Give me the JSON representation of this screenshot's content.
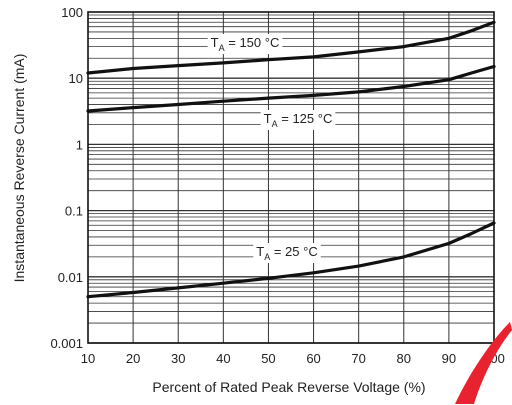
{
  "chart_data": {
    "type": "line",
    "title": "",
    "xlabel": "Percent of Rated Peak Reverse Voltage (%)",
    "ylabel": "Instantaneous Reverse Current (mA)",
    "x_ticks": [
      "10",
      "20",
      "30",
      "40",
      "50",
      "60",
      "70",
      "80",
      "90",
      "100"
    ],
    "y_ticks": [
      "100",
      "10",
      "1",
      "0.1",
      "0.01",
      "0.001"
    ],
    "xlim": [
      10,
      100
    ],
    "ylim": [
      0.001,
      100
    ],
    "y_scale": "log",
    "grid": true,
    "series": [
      {
        "name": "TA = 150 °C",
        "label_main": "T",
        "label_sub": "A",
        "label_rest": " = 150 °C",
        "x": [
          10,
          20,
          30,
          40,
          50,
          60,
          70,
          80,
          90,
          95,
          100
        ],
        "values": [
          12,
          14,
          15.5,
          17,
          19,
          21,
          25,
          30,
          40,
          52,
          70
        ]
      },
      {
        "name": "TA = 125 °C",
        "label_main": "T",
        "label_sub": "A",
        "label_rest": " = 125 °C",
        "x": [
          10,
          20,
          30,
          40,
          50,
          60,
          70,
          80,
          90,
          95,
          100
        ],
        "values": [
          3.2,
          3.6,
          4.0,
          4.5,
          5.0,
          5.5,
          6.2,
          7.5,
          9.5,
          12,
          15
        ]
      },
      {
        "name": "TA = 25 °C",
        "label_main": "T",
        "label_sub": "A",
        "label_rest": " = 25 °C",
        "x": [
          10,
          20,
          30,
          40,
          50,
          60,
          70,
          80,
          90,
          95,
          100
        ],
        "values": [
          0.005,
          0.0058,
          0.0068,
          0.008,
          0.0095,
          0.0115,
          0.0145,
          0.02,
          0.032,
          0.045,
          0.065
        ]
      }
    ]
  },
  "colors": {
    "line": "#111111",
    "grid": "#333333",
    "background": "#ffffff",
    "watermark": "#e8222e"
  }
}
